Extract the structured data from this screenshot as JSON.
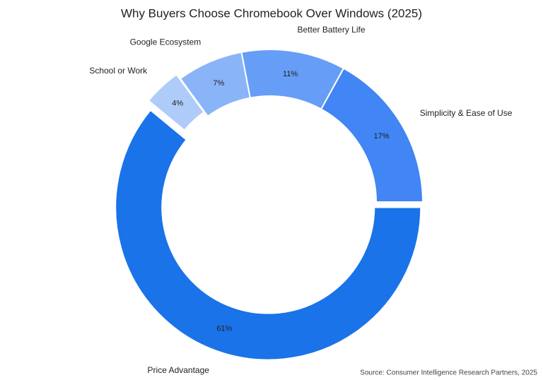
{
  "chart_data": {
    "type": "donut",
    "title": "Why Buyers Choose Chromebook Over Windows (2025)",
    "categories": [
      "Price Advantage",
      "School or Work",
      "Google Ecosystem",
      "Better Battery Life",
      "Simplicity & Ease of Use"
    ],
    "values": [
      61,
      4,
      7,
      11,
      17
    ],
    "value_labels": [
      "61%",
      "4%",
      "7%",
      "11%",
      "17%"
    ],
    "colors": [
      "#1a73e8",
      "#aecbfa",
      "#8ab4f8",
      "#669df6",
      "#4285f4"
    ],
    "exploded": [
      true,
      true,
      false,
      false,
      false
    ],
    "source": "Source: Consumer Intelligence Research Partners, 2025"
  }
}
